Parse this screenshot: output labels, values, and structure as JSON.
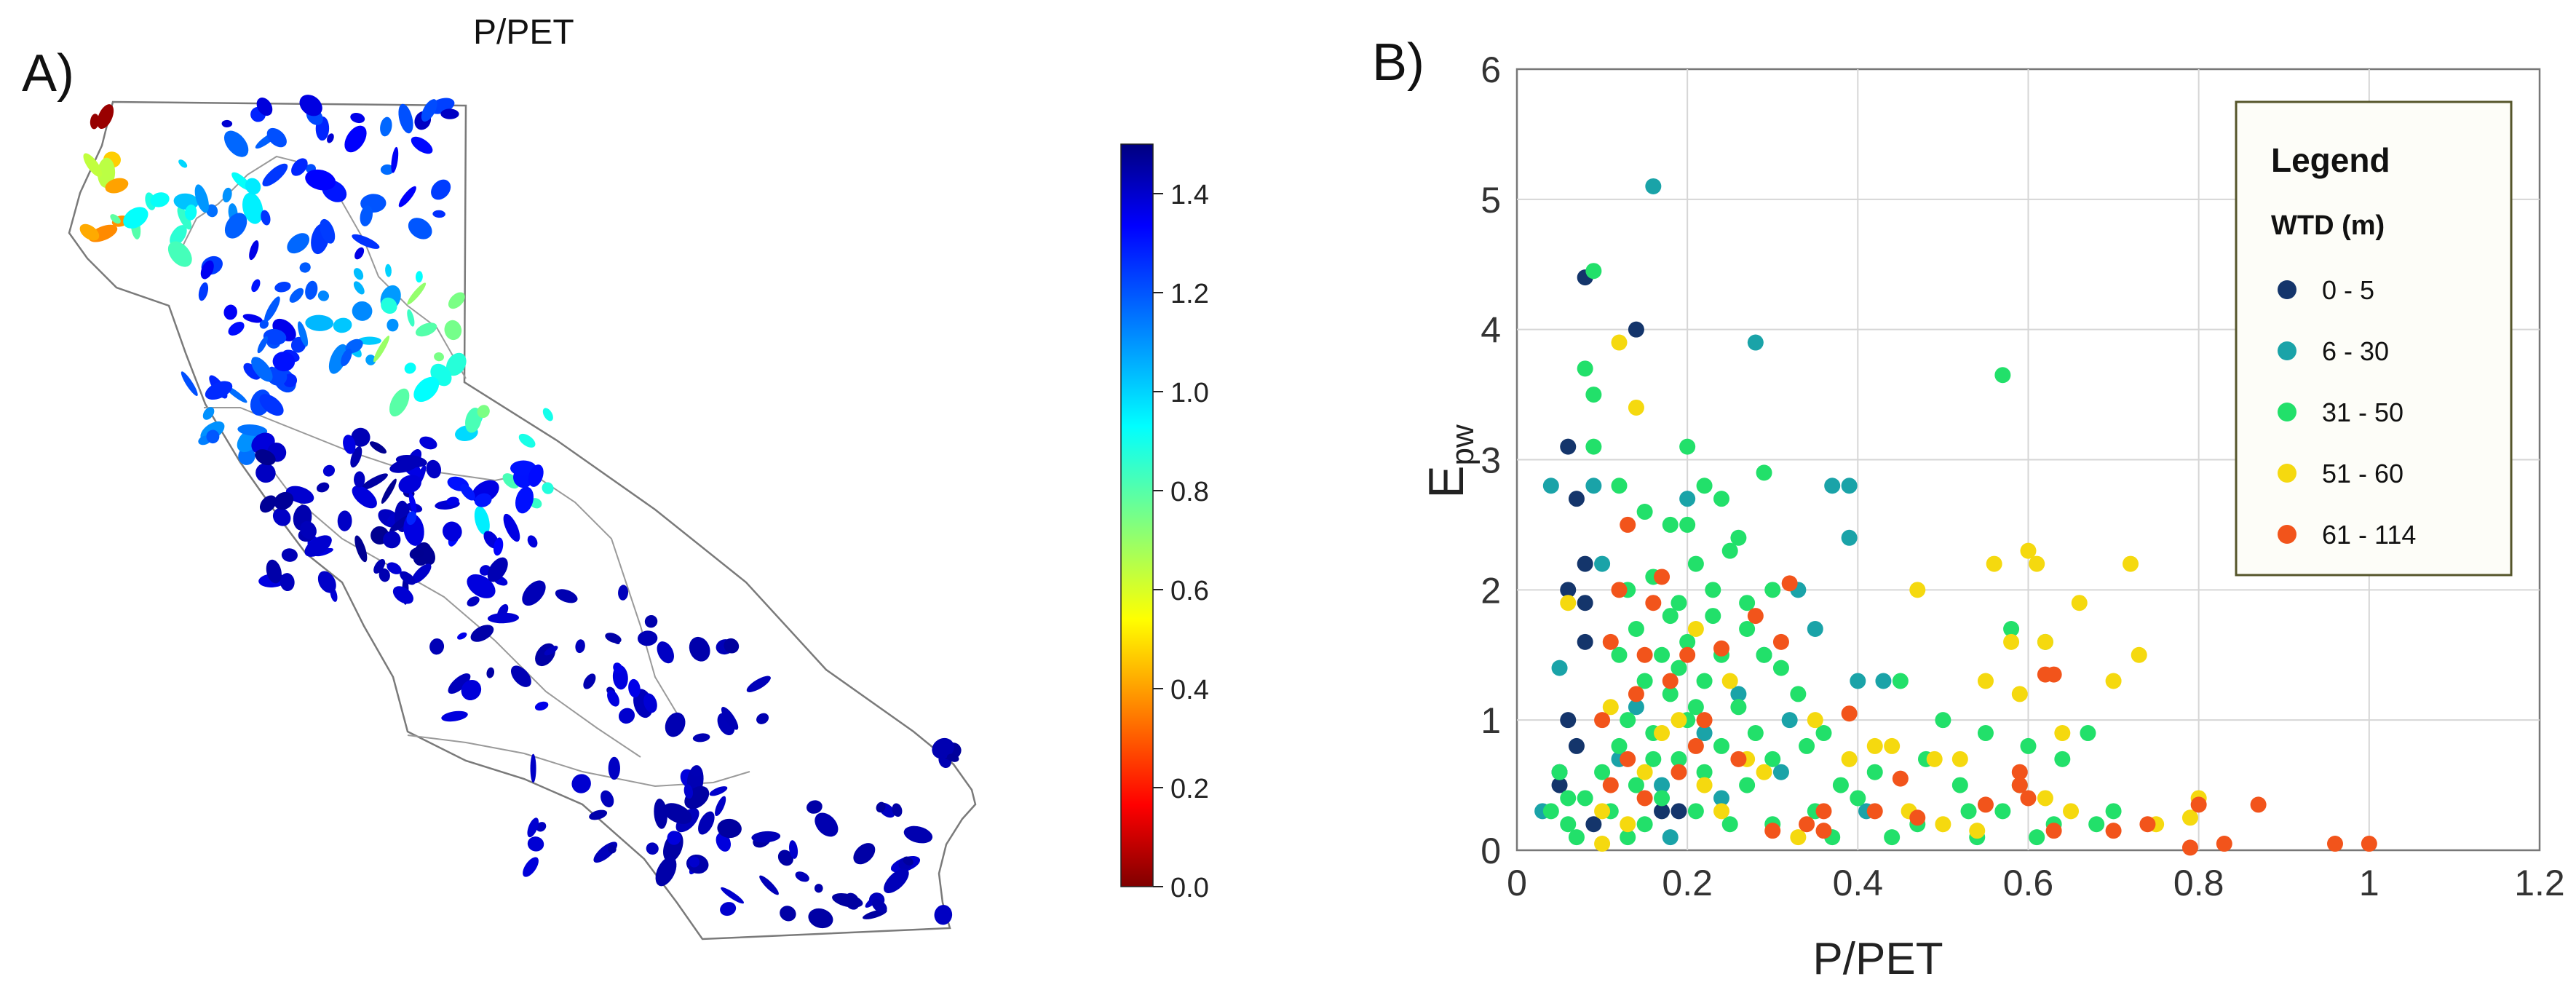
{
  "panel_a": {
    "label": "A)",
    "title": "P/PET",
    "colorbar": {
      "ticks": [
        "0.0",
        "0.2",
        "0.4",
        "0.6",
        "0.8",
        "1.0",
        "1.2",
        "1.4"
      ],
      "tick_values": [
        0.0,
        0.2,
        0.4,
        0.6,
        0.8,
        1.0,
        1.2,
        1.4
      ],
      "range": [
        0.0,
        1.5
      ]
    }
  },
  "chart_data": {
    "type": "scatter",
    "panel_label": "B)",
    "xlabel": "P/PET",
    "ylabel_main": "E",
    "ylabel_sub": "pw",
    "xlim": [
      0,
      1.2
    ],
    "ylim": [
      0,
      6
    ],
    "xticks": [
      "0",
      "0.2",
      "0.4",
      "0.6",
      "0.8",
      "1",
      "1.2"
    ],
    "xtick_values": [
      0,
      0.2,
      0.4,
      0.6,
      0.8,
      1.0,
      1.2
    ],
    "yticks": [
      "0",
      "1",
      "2",
      "3",
      "4",
      "5",
      "6"
    ],
    "ytick_values": [
      0,
      1,
      2,
      3,
      4,
      5,
      6
    ],
    "grid": true,
    "legend": {
      "title": "Legend",
      "subtitle": "WTD (m)",
      "placement": "top-right"
    },
    "series": [
      {
        "name": "0 - 5",
        "color": "#14356b",
        "points": [
          [
            0.08,
            4.4
          ],
          [
            0.14,
            4.0
          ],
          [
            0.06,
            3.1
          ],
          [
            0.07,
            2.7
          ],
          [
            0.08,
            2.2
          ],
          [
            0.08,
            1.6
          ],
          [
            0.06,
            1.0
          ],
          [
            0.07,
            0.8
          ],
          [
            0.05,
            0.6
          ],
          [
            0.17,
            0.3
          ],
          [
            0.08,
            1.9
          ],
          [
            0.06,
            2.0
          ],
          [
            0.19,
            0.3
          ],
          [
            0.09,
            0.2
          ],
          [
            0.05,
            0.5
          ]
        ]
      },
      {
        "name": "6 - 30",
        "color": "#1aa3a8",
        "points": [
          [
            0.16,
            5.1
          ],
          [
            0.28,
            3.9
          ],
          [
            0.39,
            2.8
          ],
          [
            0.37,
            2.8
          ],
          [
            0.39,
            2.4
          ],
          [
            0.09,
            2.8
          ],
          [
            0.04,
            2.8
          ],
          [
            0.2,
            2.7
          ],
          [
            0.33,
            2.0
          ],
          [
            0.35,
            1.7
          ],
          [
            0.4,
            1.3
          ],
          [
            0.43,
            1.3
          ],
          [
            0.26,
            1.2
          ],
          [
            0.22,
            0.9
          ],
          [
            0.31,
            0.6
          ],
          [
            0.05,
            1.4
          ],
          [
            0.1,
            2.2
          ],
          [
            0.29,
            1.5
          ],
          [
            0.14,
            1.1
          ],
          [
            0.17,
            0.5
          ],
          [
            0.03,
            0.3
          ],
          [
            0.12,
            0.7
          ],
          [
            0.24,
            0.4
          ],
          [
            0.32,
            1.0
          ],
          [
            0.18,
            0.1
          ],
          [
            0.41,
            0.3
          ]
        ]
      },
      {
        "name": "31 - 50",
        "color": "#22e06a",
        "points": [
          [
            0.09,
            4.45
          ],
          [
            0.57,
            3.65
          ],
          [
            0.08,
            3.7
          ],
          [
            0.09,
            3.5
          ],
          [
            0.09,
            3.1
          ],
          [
            0.2,
            3.1
          ],
          [
            0.29,
            2.9
          ],
          [
            0.22,
            2.8
          ],
          [
            0.24,
            2.7
          ],
          [
            0.15,
            2.6
          ],
          [
            0.12,
            2.8
          ],
          [
            0.18,
            2.5
          ],
          [
            0.25,
            2.3
          ],
          [
            0.21,
            2.2
          ],
          [
            0.16,
            2.1
          ],
          [
            0.13,
            2.0
          ],
          [
            0.3,
            2.0
          ],
          [
            0.19,
            1.9
          ],
          [
            0.23,
            1.8
          ],
          [
            0.27,
            1.7
          ],
          [
            0.14,
            1.7
          ],
          [
            0.2,
            1.6
          ],
          [
            0.17,
            1.5
          ],
          [
            0.24,
            1.5
          ],
          [
            0.31,
            1.4
          ],
          [
            0.15,
            1.3
          ],
          [
            0.22,
            1.3
          ],
          [
            0.18,
            1.2
          ],
          [
            0.26,
            1.1
          ],
          [
            0.13,
            1.0
          ],
          [
            0.2,
            1.0
          ],
          [
            0.28,
            0.9
          ],
          [
            0.16,
            0.9
          ],
          [
            0.24,
            0.8
          ],
          [
            0.12,
            0.8
          ],
          [
            0.3,
            0.7
          ],
          [
            0.19,
            0.7
          ],
          [
            0.1,
            0.6
          ],
          [
            0.22,
            0.6
          ],
          [
            0.14,
            0.5
          ],
          [
            0.27,
            0.5
          ],
          [
            0.08,
            0.4
          ],
          [
            0.17,
            0.4
          ],
          [
            0.21,
            0.3
          ],
          [
            0.11,
            0.3
          ],
          [
            0.06,
            0.2
          ],
          [
            0.15,
            0.2
          ],
          [
            0.25,
            0.2
          ],
          [
            0.13,
            0.1
          ],
          [
            0.45,
            1.3
          ],
          [
            0.5,
            1.0
          ],
          [
            0.55,
            0.9
          ],
          [
            0.6,
            0.8
          ],
          [
            0.58,
            1.7
          ],
          [
            0.62,
            1.6
          ],
          [
            0.42,
            0.6
          ],
          [
            0.48,
            0.7
          ],
          [
            0.52,
            0.5
          ],
          [
            0.57,
            0.3
          ],
          [
            0.63,
            0.2
          ],
          [
            0.68,
            0.2
          ],
          [
            0.35,
            0.3
          ],
          [
            0.38,
            0.5
          ],
          [
            0.36,
            0.9
          ],
          [
            0.33,
            1.2
          ],
          [
            0.47,
            0.2
          ],
          [
            0.53,
            0.3
          ],
          [
            0.59,
            0.5
          ],
          [
            0.64,
            0.7
          ],
          [
            0.67,
            0.9
          ],
          [
            0.04,
            0.3
          ],
          [
            0.05,
            0.6
          ],
          [
            0.06,
            0.4
          ],
          [
            0.07,
            0.1
          ],
          [
            0.2,
            2.5
          ],
          [
            0.23,
            2.0
          ],
          [
            0.27,
            1.9
          ],
          [
            0.29,
            1.5
          ],
          [
            0.19,
            1.4
          ],
          [
            0.21,
            1.1
          ],
          [
            0.34,
            0.8
          ],
          [
            0.4,
            0.4
          ],
          [
            0.44,
            0.1
          ],
          [
            0.54,
            0.1
          ],
          [
            0.61,
            0.1
          ],
          [
            0.7,
            0.3
          ],
          [
            0.37,
            0.1
          ],
          [
            0.16,
            0.7
          ],
          [
            0.18,
            1.8
          ],
          [
            0.12,
            1.5
          ],
          [
            0.26,
            2.4
          ],
          [
            0.3,
            0.2
          ]
        ]
      },
      {
        "name": "51 - 60",
        "color": "#f5d90f",
        "points": [
          [
            0.12,
            3.9
          ],
          [
            0.14,
            3.4
          ],
          [
            0.6,
            2.3
          ],
          [
            0.61,
            2.2
          ],
          [
            0.72,
            2.2
          ],
          [
            0.56,
            2.2
          ],
          [
            0.47,
            2.0
          ],
          [
            0.66,
            1.9
          ],
          [
            0.62,
            1.6
          ],
          [
            0.58,
            1.6
          ],
          [
            0.73,
            1.5
          ],
          [
            0.55,
            1.3
          ],
          [
            0.7,
            1.3
          ],
          [
            0.59,
            1.2
          ],
          [
            0.64,
            0.9
          ],
          [
            0.49,
            0.7
          ],
          [
            0.52,
            0.7
          ],
          [
            0.62,
            0.4
          ],
          [
            0.8,
            0.4
          ],
          [
            0.79,
            0.25
          ],
          [
            0.44,
            0.8
          ],
          [
            0.46,
            0.3
          ],
          [
            0.5,
            0.2
          ],
          [
            0.54,
            0.15
          ],
          [
            0.33,
            0.1
          ],
          [
            0.35,
            1.0
          ],
          [
            0.27,
            0.7
          ],
          [
            0.22,
            0.5
          ],
          [
            0.15,
            0.6
          ],
          [
            0.11,
            1.1
          ],
          [
            0.1,
            0.3
          ],
          [
            0.06,
            1.9
          ],
          [
            0.25,
            1.3
          ],
          [
            0.21,
            1.7
          ],
          [
            0.17,
            0.9
          ],
          [
            0.13,
            0.2
          ],
          [
            0.19,
            1.0
          ],
          [
            0.24,
            0.3
          ],
          [
            0.29,
            0.6
          ],
          [
            0.39,
            0.7
          ],
          [
            0.42,
            0.8
          ],
          [
            0.65,
            0.3
          ],
          [
            0.75,
            0.2
          ],
          [
            0.1,
            0.05
          ]
        ]
      },
      {
        "name": "61 - 114",
        "color": "#f2541b",
        "points": [
          [
            1.0,
            0.05
          ],
          [
            0.96,
            0.05
          ],
          [
            0.83,
            0.05
          ],
          [
            0.79,
            0.02
          ],
          [
            0.87,
            0.35
          ],
          [
            0.8,
            0.35
          ],
          [
            0.74,
            0.2
          ],
          [
            0.7,
            0.15
          ],
          [
            0.63,
            0.15
          ],
          [
            0.59,
            0.5
          ],
          [
            0.6,
            0.4
          ],
          [
            0.62,
            1.35
          ],
          [
            0.63,
            1.35
          ],
          [
            0.39,
            1.05
          ],
          [
            0.45,
            0.55
          ],
          [
            0.47,
            0.25
          ],
          [
            0.36,
            0.15
          ],
          [
            0.32,
            2.05
          ],
          [
            0.31,
            1.6
          ],
          [
            0.28,
            1.8
          ],
          [
            0.24,
            1.55
          ],
          [
            0.2,
            1.5
          ],
          [
            0.16,
            1.9
          ],
          [
            0.13,
            2.5
          ],
          [
            0.12,
            2.0
          ],
          [
            0.14,
            1.2
          ],
          [
            0.11,
            1.6
          ],
          [
            0.17,
            2.1
          ],
          [
            0.22,
            1.0
          ],
          [
            0.26,
            0.7
          ],
          [
            0.19,
            0.6
          ],
          [
            0.15,
            0.4
          ],
          [
            0.1,
            1.0
          ],
          [
            0.13,
            0.7
          ],
          [
            0.3,
            0.15
          ],
          [
            0.34,
            0.2
          ],
          [
            0.18,
            1.3
          ],
          [
            0.21,
            0.8
          ],
          [
            0.15,
            1.5
          ],
          [
            0.42,
            0.3
          ],
          [
            0.55,
            0.35
          ],
          [
            0.59,
            0.6
          ],
          [
            0.36,
            0.3
          ],
          [
            0.11,
            0.5
          ]
        ]
      }
    ]
  }
}
